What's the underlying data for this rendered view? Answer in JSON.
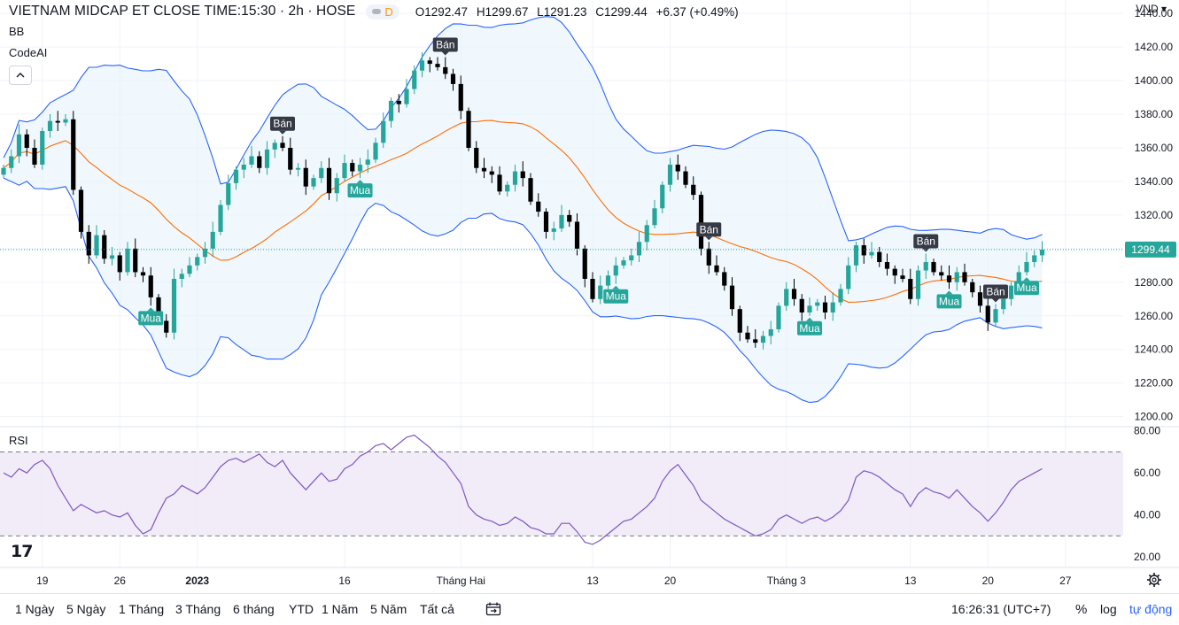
{
  "header": {
    "symbol_title": "VIETNAM MIDCAP ET CLOSE TIME:15:30 · 2h · HOSE",
    "badge": "D",
    "ohlc": {
      "o_label": "O",
      "o": "1292.47",
      "h_label": "H",
      "h": "1299.67",
      "l_label": "L",
      "l": "1291.23",
      "c_label": "C",
      "c": "1299.44",
      "change": "+6.37 (+0.49%)"
    },
    "currency": "VND"
  },
  "indicators": {
    "bb": "BB",
    "codeai": "CodeAI",
    "rsi": "RSI"
  },
  "last_price_label": "1299.44",
  "colors": {
    "up": "#26a69a",
    "down": "#000000",
    "bb_band": "#2962ff",
    "bb_basis": "#ff6d00",
    "bb_fill": "#e3f2fd",
    "rsi_line": "#7e57c2",
    "rsi_fill": "#ede7f6",
    "sell_tag": "#363a45",
    "buy_tag": "#26a69a",
    "accent": "#2962ff"
  },
  "toolbar": {
    "timeframes": [
      "1 Ngày",
      "5 Ngày",
      "1 Tháng",
      "3 Tháng",
      "6 tháng",
      "YTD",
      "1 Năm",
      "5 Năm",
      "Tất cả"
    ],
    "time": "16:26:31 (UTC+7)",
    "percent": "%",
    "log": "log",
    "auto": "tự động",
    "icons": {
      "range": "calendar-range-icon",
      "settings": "gear-icon",
      "collapse": "chevron-up-icon"
    }
  },
  "chart_data": [
    {
      "type": "candlestick",
      "title": "",
      "yaxis_ticks": [
        1200,
        1220,
        1240,
        1260,
        1280,
        1300,
        1320,
        1340,
        1360,
        1380,
        1400,
        1420,
        1440
      ],
      "ylim": [
        1194,
        1448
      ],
      "x_ticks": [
        {
          "label": "19",
          "index": 5
        },
        {
          "label": "26",
          "index": 15
        },
        {
          "label": "2023",
          "index": 25
        },
        {
          "label": "16",
          "index": 44
        },
        {
          "label": "Tháng Hai",
          "index": 59
        },
        {
          "label": "13",
          "index": 76
        },
        {
          "label": "20",
          "index": 86
        },
        {
          "label": "Tháng 3",
          "index": 101
        },
        {
          "label": "13",
          "index": 117
        },
        {
          "label": "20",
          "index": 127
        },
        {
          "label": "27",
          "index": 137
        }
      ],
      "closes": [
        1348,
        1355,
        1368,
        1360,
        1350,
        1370,
        1376,
        1375,
        1377,
        1335,
        1310,
        1296,
        1308,
        1294,
        1296,
        1286,
        1300,
        1286,
        1284,
        1271,
        1257,
        1250,
        1282,
        1285,
        1290,
        1295,
        1300,
        1310,
        1326,
        1339,
        1347,
        1350,
        1355,
        1348,
        1359,
        1363,
        1360,
        1347,
        1348,
        1337,
        1342,
        1348,
        1333,
        1342,
        1351,
        1346,
        1350,
        1353,
        1363,
        1376,
        1388,
        1386,
        1395,
        1406,
        1412,
        1410,
        1408,
        1404,
        1398,
        1382,
        1360,
        1348,
        1346,
        1344,
        1334,
        1338,
        1346,
        1342,
        1328,
        1322,
        1310,
        1312,
        1320,
        1316,
        1300,
        1282,
        1270,
        1278,
        1284,
        1290,
        1293,
        1296,
        1304,
        1314,
        1324,
        1338,
        1350,
        1346,
        1338,
        1332,
        1300,
        1290,
        1286,
        1278,
        1264,
        1250,
        1246,
        1244,
        1248,
        1252,
        1266,
        1276,
        1270,
        1262,
        1266,
        1268,
        1262,
        1268,
        1276,
        1290,
        1302,
        1296,
        1298,
        1292,
        1288,
        1284,
        1282,
        1270,
        1287,
        1292,
        1286,
        1284,
        1280,
        1286,
        1280,
        1274,
        1266,
        1256,
        1264,
        1270,
        1278,
        1286,
        1292,
        1296,
        1299.44
      ],
      "markers": [
        {
          "label": "Bán",
          "index": 36,
          "type": "sell"
        },
        {
          "label": "Mua",
          "index": 46,
          "type": "buy"
        },
        {
          "label": "Bán",
          "index": 57,
          "type": "sell"
        },
        {
          "label": "Mua",
          "index": 19,
          "type": "buy"
        },
        {
          "label": "Mua",
          "index": 79,
          "type": "buy"
        },
        {
          "label": "Bán",
          "index": 91,
          "type": "sell"
        },
        {
          "label": "Mua",
          "index": 104,
          "type": "buy"
        },
        {
          "label": "Bán",
          "index": 119,
          "type": "sell"
        },
        {
          "label": "Mua",
          "index": 122,
          "type": "buy"
        },
        {
          "label": "Bán",
          "index": 128,
          "type": "sell"
        },
        {
          "label": "Mua",
          "index": 132,
          "type": "buy"
        }
      ]
    },
    {
      "type": "line",
      "title": "RSI",
      "yaxis_ticks": [
        20,
        40,
        60,
        80
      ],
      "ylim": [
        15,
        82
      ],
      "band": [
        30,
        70
      ],
      "values": [
        60,
        58,
        62,
        60,
        64,
        66,
        62,
        54,
        48,
        42,
        45,
        43,
        41,
        42,
        40,
        39,
        41,
        35,
        31,
        33,
        41,
        48,
        50,
        54,
        52,
        50,
        53,
        58,
        63,
        66,
        67,
        65,
        67,
        69,
        65,
        63,
        66,
        60,
        56,
        52,
        56,
        60,
        56,
        57,
        62,
        64,
        68,
        70,
        73,
        74,
        71,
        74,
        77,
        78,
        75,
        72,
        68,
        65,
        60,
        55,
        44,
        40,
        38,
        37,
        35,
        36,
        39,
        37,
        34,
        33,
        31,
        31,
        36,
        36,
        32,
        27,
        26,
        28,
        31,
        34,
        37,
        38,
        41,
        44,
        48,
        56,
        61,
        64,
        59,
        54,
        47,
        44,
        41,
        38,
        36,
        34,
        32,
        30,
        31,
        33,
        38,
        40,
        38,
        36,
        38,
        39,
        37,
        39,
        42,
        47,
        58,
        61,
        60,
        58,
        55,
        52,
        50,
        44,
        50,
        53,
        51,
        50,
        48,
        52,
        48,
        44,
        41,
        37,
        41,
        46,
        52,
        56,
        58,
        60,
        62
      ]
    }
  ]
}
